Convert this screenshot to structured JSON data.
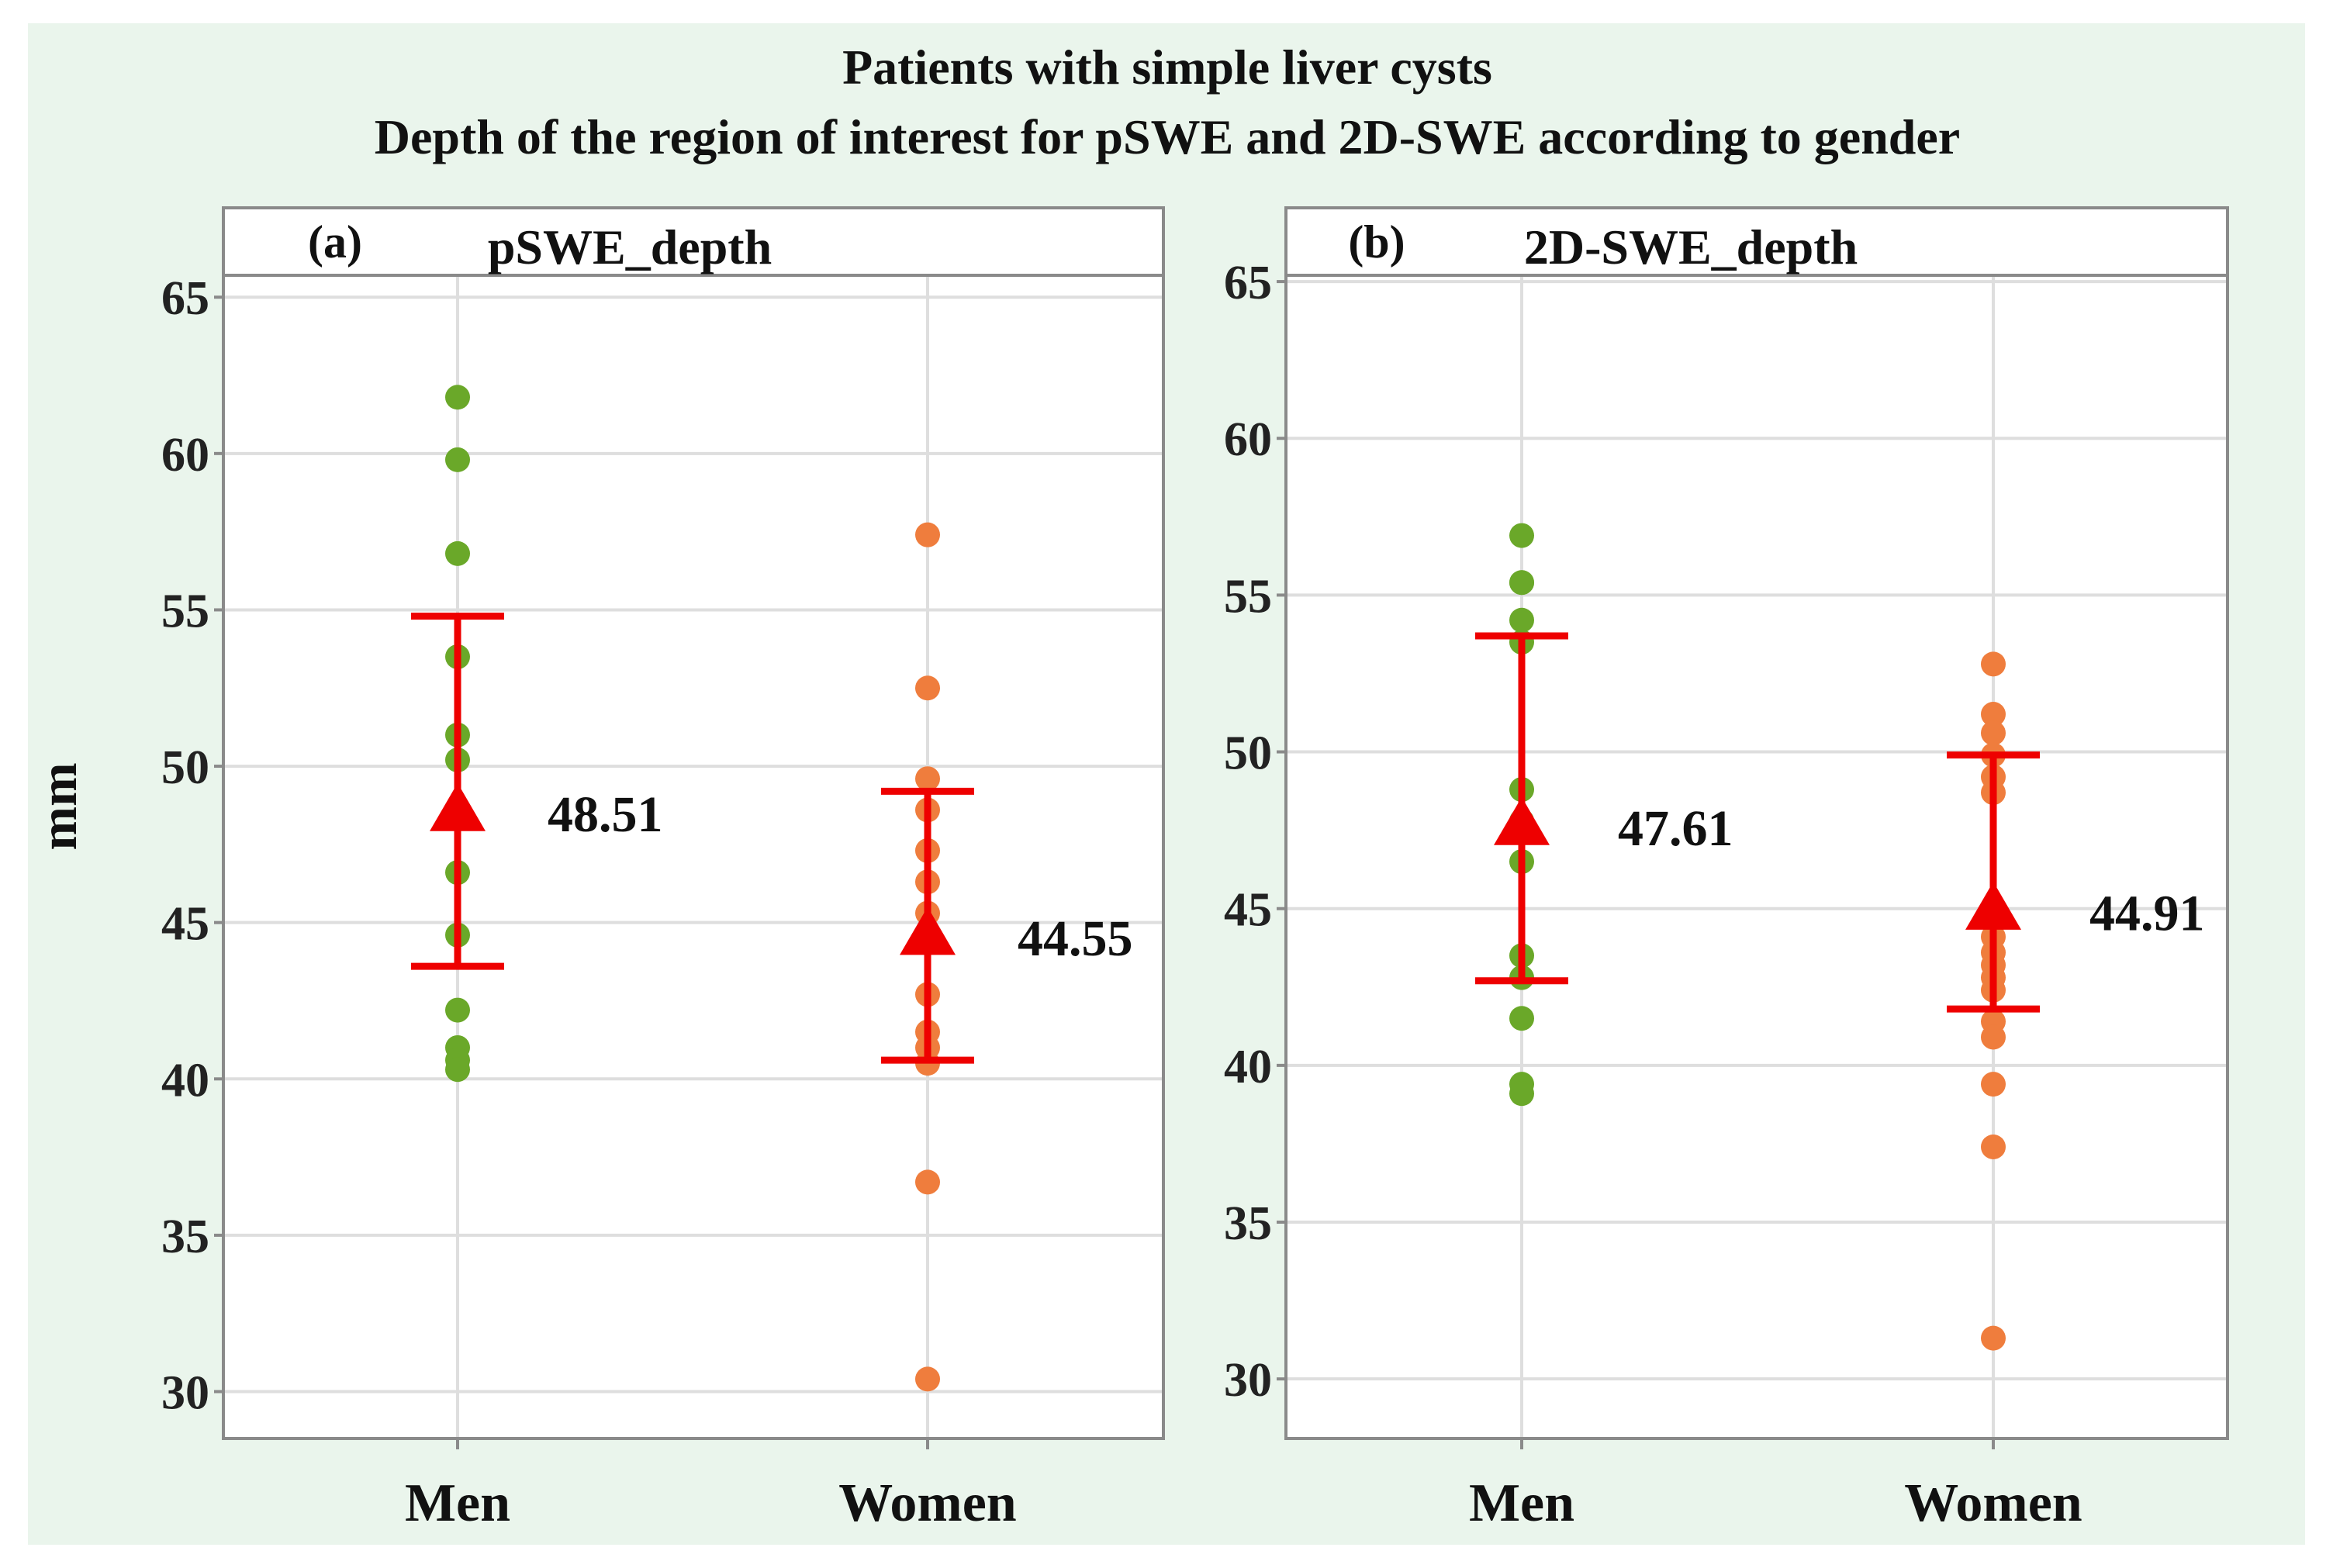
{
  "title_line1": "Patients with simple liver cysts",
  "title_line2": "Depth of the region of interest for pSWE and 2D-SWE according to gender",
  "ylabel": "mm",
  "colors": {
    "figure_bg": "#EAF5EC",
    "panel_bg": "#FFFFFF",
    "grid": "#DEDEDE",
    "frame": "#8A8A8A",
    "men": "#6AA829",
    "women": "#EF7D3D",
    "mean": "#EE0000"
  },
  "chart_data": [
    {
      "type": "scatter",
      "panel_tag": "(a)",
      "strip_label": "pSWE_depth",
      "categories": [
        "Men",
        "Women"
      ],
      "ylim": [
        28.5,
        65.7
      ],
      "yticks": [
        30,
        35,
        40,
        45,
        50,
        55,
        60,
        65
      ],
      "grid": true,
      "series": [
        {
          "name": "Men",
          "points": [
            61.8,
            59.8,
            56.8,
            53.5,
            51,
            50.2,
            46.6,
            44.6,
            42.2,
            41,
            40.6,
            40.3
          ],
          "mean": 48.51,
          "mean_label": "48.51",
          "err_low": 43.6,
          "err_high": 54.8
        },
        {
          "name": "Women",
          "points": [
            57.4,
            52.5,
            49.6,
            48.6,
            47.3,
            46.3,
            45.3,
            44.6,
            42.7,
            41.5,
            41,
            40.5,
            36.7,
            30.4
          ],
          "mean": 44.55,
          "mean_label": "44.55",
          "err_low": 40.6,
          "err_high": 49.2
        }
      ]
    },
    {
      "type": "scatter",
      "panel_tag": "(b)",
      "strip_label": "2D-SWE_depth",
      "categories": [
        "Men",
        "Women"
      ],
      "ylim": [
        28.1,
        65.2
      ],
      "yticks": [
        30,
        35,
        40,
        45,
        50,
        55,
        60,
        65
      ],
      "grid": true,
      "series": [
        {
          "name": "Men",
          "points": [
            56.9,
            55.4,
            55.4,
            54.2,
            53.5,
            48.8,
            47.8,
            46.5,
            43.5,
            42.8,
            41.5,
            39.4,
            39.1
          ],
          "mean": 47.61,
          "mean_label": "47.61",
          "err_low": 42.7,
          "err_high": 53.7
        },
        {
          "name": "Women",
          "points": [
            52.8,
            51.2,
            50.6,
            49.9,
            49.2,
            48.7,
            44.1,
            43.6,
            43.2,
            42.8,
            42.4,
            41.4,
            40.9,
            39.4,
            37.4,
            31.3
          ],
          "mean": 44.91,
          "mean_label": "44.91",
          "err_low": 41.8,
          "err_high": 49.9
        }
      ]
    }
  ]
}
